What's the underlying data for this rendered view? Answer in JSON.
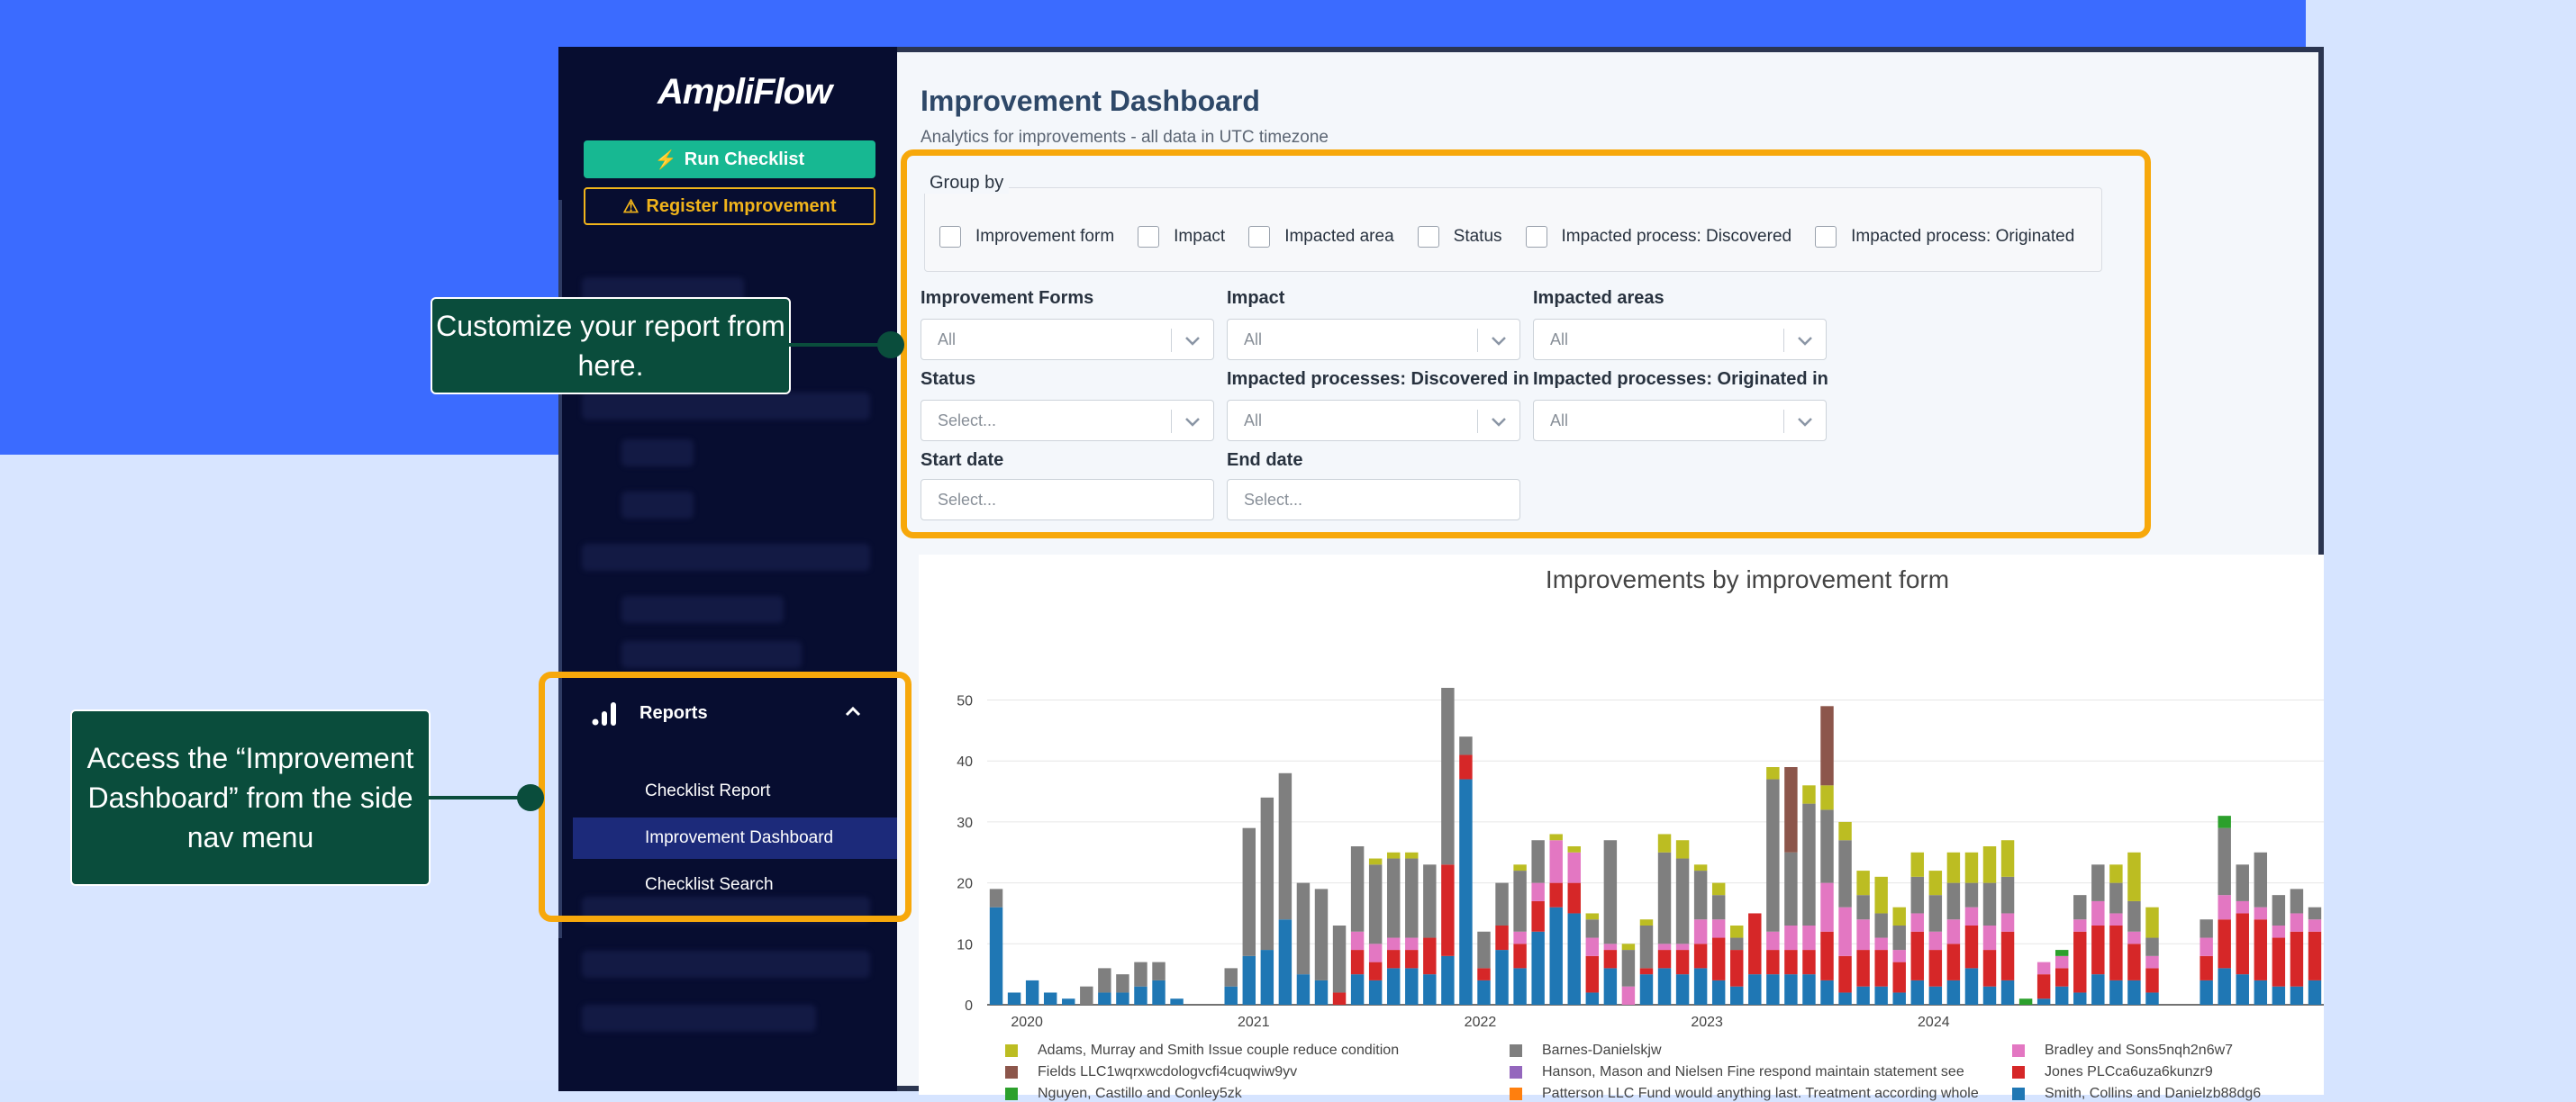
{
  "app": {
    "logo": "AmpliFlow"
  },
  "sidebar": {
    "run_checklist": "Run Checklist",
    "register_improvement": "Register Improvement",
    "reports_label": "Reports",
    "sub_items": [
      "Checklist Report",
      "Improvement Dashboard",
      "Checklist Search"
    ]
  },
  "main": {
    "title": "Improvement Dashboard",
    "subtitle": "Analytics for improvements - all data in UTC timezone",
    "group_by": {
      "legend": "Group by",
      "options": [
        "Improvement form",
        "Impact",
        "Impacted area",
        "Status",
        "Impacted process: Discovered",
        "Impacted process: Originated"
      ]
    },
    "filters": {
      "improvement_forms": {
        "label": "Improvement Forms",
        "value": "All"
      },
      "impact": {
        "label": "Impact",
        "value": "All"
      },
      "impacted_areas": {
        "label": "Impacted areas",
        "value": "All"
      },
      "status": {
        "label": "Status",
        "value": "Select..."
      },
      "discovered_in": {
        "label": "Impacted processes: Discovered in",
        "value": "All"
      },
      "originated_in": {
        "label": "Impacted processes: Originated in",
        "value": "All"
      },
      "start_date": {
        "label": "Start date",
        "placeholder": "Select..."
      },
      "end_date": {
        "label": "End date",
        "placeholder": "Select..."
      }
    }
  },
  "callouts": {
    "customize": "Customize your report from here.",
    "access": "Access the “Improvement Dashboard” from the side nav menu"
  },
  "colors": {
    "accent_teal": "#17b892",
    "warning": "#f1b41b",
    "highlight": "#f7a80b",
    "callout": "#0a4d3c"
  },
  "chart_data": {
    "type": "bar",
    "stacked": true,
    "title": "Improvements by improvement form",
    "x_tick_labels": [
      "2020",
      "2021",
      "2022",
      "2023",
      "2024"
    ],
    "y_ticks": [
      0,
      10,
      20,
      30,
      40,
      50
    ],
    "ylim": [
      0,
      52
    ],
    "legend_position": "bottom",
    "series": [
      {
        "name": "Smith, Collins and Danielzb88dg6",
        "color": "#1f77b4",
        "values": [
          16,
          2,
          4,
          2,
          1,
          0,
          2,
          2,
          3,
          4,
          1,
          0,
          0,
          3,
          8,
          9,
          14,
          5,
          4,
          0,
          5,
          4,
          6,
          6,
          5,
          8,
          37,
          4,
          9,
          6,
          12,
          16,
          15,
          2,
          6,
          0,
          5,
          6,
          5,
          6,
          4,
          3,
          5,
          5,
          5,
          5,
          4,
          2,
          3,
          3,
          2,
          4,
          3,
          4,
          6,
          3,
          4,
          0,
          1,
          3,
          2,
          5,
          4,
          4,
          2,
          0,
          0,
          4,
          6,
          5,
          4,
          3,
          3,
          4
        ]
      },
      {
        "name": "Jones PLCca6uza6kunzr9",
        "color": "#d62728",
        "values": [
          0,
          0,
          0,
          0,
          0,
          0,
          0,
          0,
          0,
          0,
          0,
          0,
          0,
          0,
          0,
          0,
          0,
          0,
          0,
          2,
          4,
          3,
          3,
          3,
          6,
          15,
          4,
          2,
          4,
          4,
          5,
          4,
          5,
          6,
          3,
          0,
          1,
          3,
          4,
          4,
          7,
          6,
          10,
          4,
          4,
          4,
          8,
          6,
          6,
          6,
          5,
          8,
          6,
          6,
          7,
          6,
          8,
          0,
          4,
          3,
          10,
          8,
          9,
          6,
          4,
          0,
          0,
          4,
          8,
          10,
          10,
          8,
          9,
          8
        ]
      },
      {
        "name": "Bradley and Sons5nqh2n6w7",
        "color": "#e377c2",
        "values": [
          0,
          0,
          0,
          0,
          0,
          0,
          0,
          0,
          0,
          0,
          0,
          0,
          0,
          0,
          0,
          0,
          0,
          0,
          0,
          0,
          3,
          3,
          2,
          2,
          0,
          0,
          0,
          0,
          0,
          2,
          3,
          7,
          5,
          3,
          1,
          3,
          0,
          1,
          1,
          4,
          3,
          0,
          0,
          3,
          4,
          4,
          8,
          8,
          5,
          2,
          2,
          3,
          3,
          4,
          3,
          4,
          3,
          0,
          2,
          2,
          2,
          4,
          2,
          2,
          2,
          0,
          0,
          3,
          4,
          2,
          2,
          2,
          3,
          2
        ]
      },
      {
        "name": "Barnes-Danielskjw",
        "color": "#7f7f7f",
        "values": [
          3,
          0,
          0,
          0,
          0,
          3,
          4,
          3,
          4,
          3,
          0,
          0,
          0,
          3,
          21,
          25,
          24,
          15,
          15,
          11,
          14,
          13,
          13,
          13,
          12,
          29,
          3,
          6,
          7,
          10,
          7,
          0,
          0,
          3,
          17,
          6,
          7,
          15,
          14,
          8,
          4,
          2,
          0,
          25,
          12,
          20,
          12,
          11,
          4,
          4,
          4,
          6,
          6,
          6,
          4,
          7,
          6,
          0,
          0,
          0,
          4,
          6,
          5,
          5,
          3,
          0,
          0,
          3,
          11,
          6,
          9,
          5,
          4,
          2
        ]
      },
      {
        "name": "Adams, Murray and Smith Issue couple reduce condition",
        "color": "#bcbd22",
        "values": [
          0,
          0,
          0,
          0,
          0,
          0,
          0,
          0,
          0,
          0,
          0,
          0,
          0,
          0,
          0,
          0,
          0,
          0,
          0,
          0,
          0,
          1,
          1,
          1,
          0,
          0,
          0,
          0,
          0,
          1,
          0,
          1,
          1,
          1,
          0,
          1,
          1,
          3,
          3,
          1,
          2,
          2,
          0,
          2,
          0,
          3,
          4,
          3,
          4,
          6,
          3,
          4,
          4,
          5,
          5,
          6,
          6,
          0,
          0,
          0,
          0,
          0,
          3,
          8,
          5,
          0,
          0,
          0,
          0,
          0,
          0,
          0,
          0,
          0
        ]
      },
      {
        "name": "Fields LLC1wqrxwcdologvcfi4cuqwiw9yv",
        "color": "#8c564b",
        "values": [
          0,
          0,
          0,
          0,
          0,
          0,
          0,
          0,
          0,
          0,
          0,
          0,
          0,
          0,
          0,
          0,
          0,
          0,
          0,
          0,
          0,
          0,
          0,
          0,
          0,
          0,
          0,
          0,
          0,
          0,
          0,
          0,
          0,
          0,
          0,
          0,
          0,
          0,
          0,
          0,
          0,
          0,
          0,
          0,
          14,
          0,
          13,
          0,
          0,
          0,
          0,
          0,
          0,
          0,
          0,
          0,
          0,
          0,
          0,
          0,
          0,
          0,
          0,
          0,
          0,
          0,
          0,
          0,
          0,
          0,
          0,
          0,
          0,
          0
        ]
      },
      {
        "name": "Hanson, Mason and Nielsen Fine respond maintain statement see",
        "color": "#9467bd",
        "values": [
          0,
          0,
          0,
          0,
          0,
          0,
          0,
          0,
          0,
          0,
          0,
          0,
          0,
          0,
          0,
          0,
          0,
          0,
          0,
          0,
          0,
          0,
          0,
          0,
          0,
          0,
          0,
          0,
          0,
          0,
          0,
          0,
          0,
          0,
          0,
          0,
          0,
          0,
          0,
          0,
          0,
          0,
          0,
          0,
          0,
          0,
          0,
          0,
          0,
          0,
          0,
          0,
          0,
          0,
          0,
          0,
          0,
          0,
          0,
          0,
          0,
          0,
          0,
          0,
          0,
          0,
          0,
          0,
          0,
          0,
          0,
          0,
          0,
          0
        ]
      },
      {
        "name": "Patterson LLC Fund would anything last. Treatment according whole",
        "color": "#ff7f0e",
        "values": [
          0,
          0,
          0,
          0,
          0,
          0,
          0,
          0,
          0,
          0,
          0,
          0,
          0,
          0,
          0,
          0,
          0,
          0,
          0,
          0,
          0,
          0,
          0,
          0,
          0,
          0,
          0,
          0,
          0,
          0,
          0,
          0,
          0,
          0,
          0,
          0,
          0,
          0,
          0,
          0,
          0,
          0,
          0,
          0,
          0,
          0,
          0,
          0,
          0,
          0,
          0,
          0,
          0,
          0,
          0,
          0,
          0,
          0,
          0,
          0,
          0,
          0,
          0,
          0,
          0,
          0,
          0,
          0,
          0,
          0,
          0,
          0,
          0,
          0
        ]
      },
      {
        "name": "Nguyen, Castillo and Conley5zk",
        "color": "#2ca02c",
        "values": [
          0,
          0,
          0,
          0,
          0,
          0,
          0,
          0,
          0,
          0,
          0,
          0,
          0,
          0,
          0,
          0,
          0,
          0,
          0,
          0,
          0,
          0,
          0,
          0,
          0,
          0,
          0,
          0,
          0,
          0,
          0,
          0,
          0,
          0,
          0,
          0,
          0,
          0,
          0,
          0,
          0,
          0,
          0,
          0,
          0,
          0,
          0,
          0,
          0,
          0,
          0,
          0,
          0,
          0,
          0,
          0,
          0,
          1,
          0,
          1,
          0,
          0,
          0,
          0,
          0,
          0,
          0,
          0,
          2,
          0,
          0,
          0,
          0,
          0
        ]
      }
    ]
  }
}
